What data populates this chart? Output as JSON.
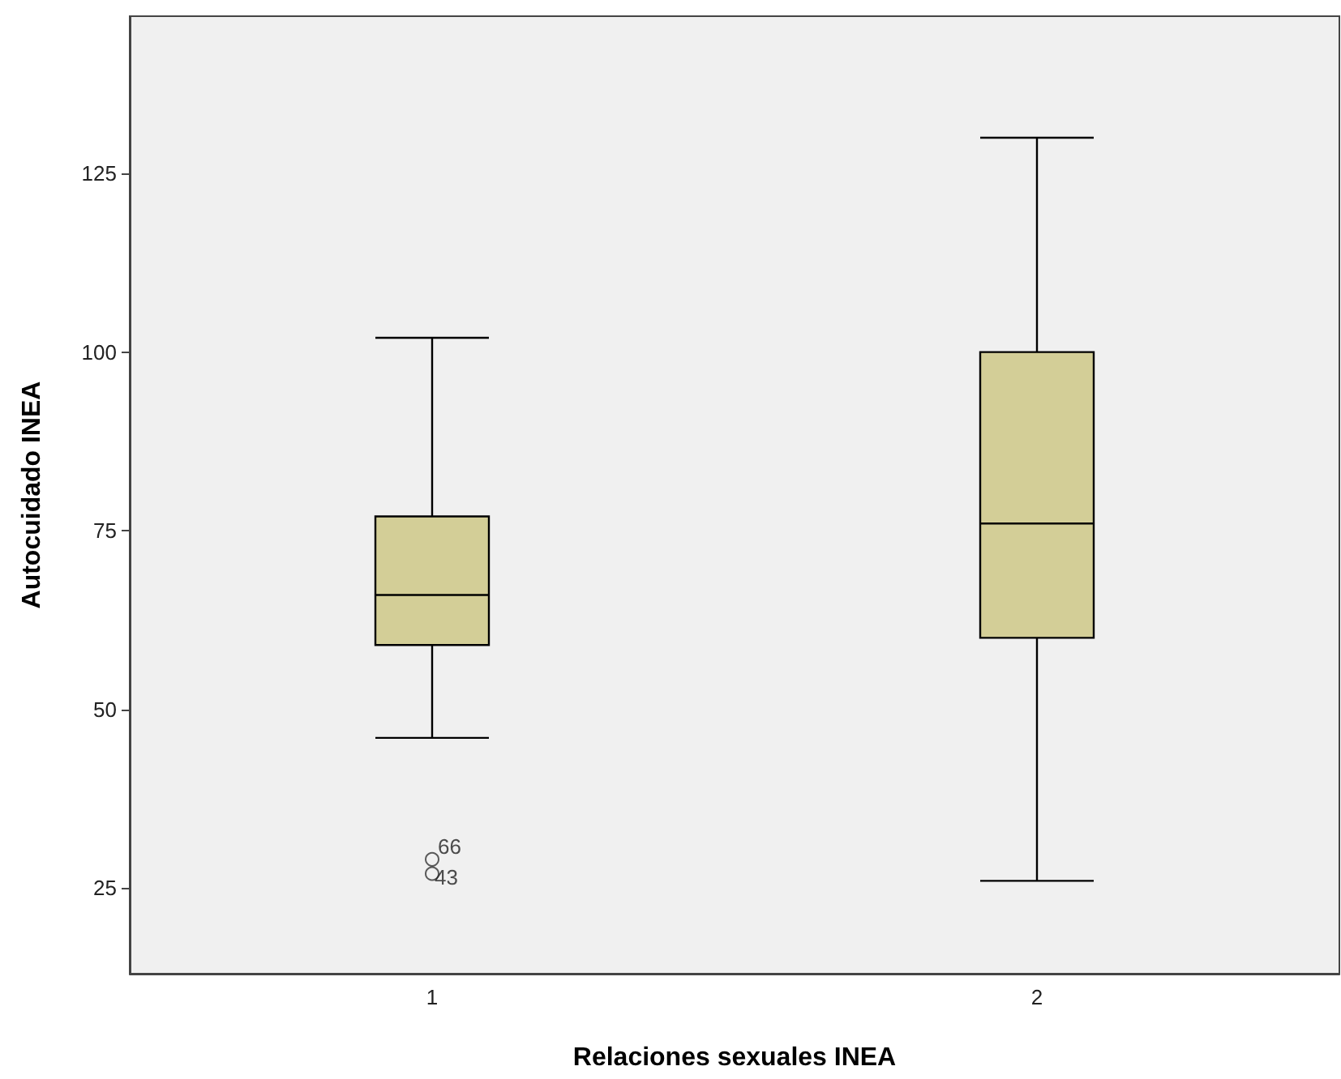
{
  "chart_data": {
    "type": "box",
    "xlabel": "Relaciones sexuales INEA",
    "ylabel": "Autocuidado INEA",
    "categories": [
      "1",
      "2"
    ],
    "series": [
      {
        "color": "#d3ce97",
        "boxes": [
          {
            "low": 46,
            "q1": 59,
            "median": 66,
            "q3": 77,
            "high": 102,
            "outliers": [
              29,
              27
            ]
          },
          {
            "low": 26,
            "q1": 60,
            "median": 76,
            "q3": 100,
            "high": 130
          }
        ]
      }
    ],
    "annotations": [
      "66",
      "43"
    ],
    "ylim": [
      13,
      147
    ],
    "yticks": [
      25,
      50,
      75,
      100,
      125
    ],
    "grid": false
  }
}
